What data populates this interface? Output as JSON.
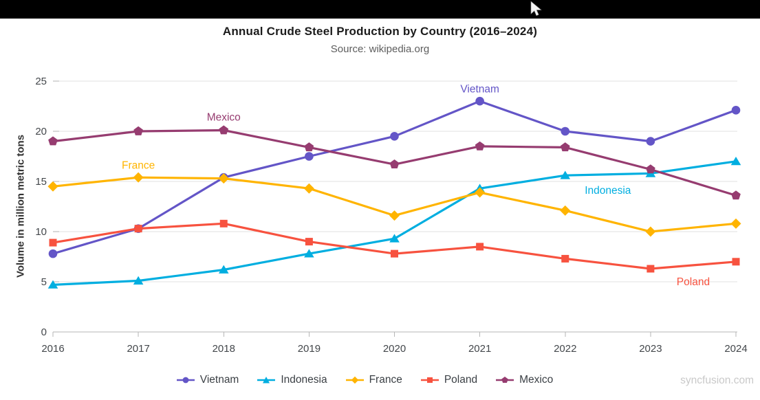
{
  "topbar": {
    "background": "#000000",
    "icons": {
      "mouse_cursor": "white-arrow-pointer"
    }
  },
  "chart_data": {
    "type": "line",
    "title": "Annual Crude Steel Production by Country (2016–2024)",
    "subtitle": "Source: wikipedia.org",
    "xlabel": "",
    "ylabel": "Volume in million metric tons",
    "x": [
      2016,
      2017,
      2018,
      2019,
      2020,
      2021,
      2022,
      2023,
      2024
    ],
    "ylim": [
      0,
      25
    ],
    "yticks": [
      0,
      5,
      10,
      15,
      20,
      25
    ],
    "grid": true,
    "legend_position": "bottom",
    "series": [
      {
        "name": "Vietnam",
        "color": "#6355C7",
        "marker": "circle",
        "values": [
          7.8,
          10.3,
          15.4,
          17.5,
          19.5,
          23.0,
          20.0,
          19.0,
          22.1
        ],
        "annotation": {
          "x": 2021,
          "y": 24.2
        }
      },
      {
        "name": "Indonesia",
        "color": "#00AEE0",
        "marker": "triangle",
        "values": [
          4.7,
          5.1,
          6.2,
          7.8,
          9.3,
          14.3,
          15.6,
          15.8,
          17.0
        ],
        "annotation": {
          "x": 2022.5,
          "y": 14.1
        }
      },
      {
        "name": "France",
        "color": "#FFB400",
        "marker": "diamond",
        "values": [
          14.5,
          15.4,
          15.3,
          14.3,
          11.6,
          13.9,
          12.1,
          10.0,
          10.8
        ],
        "annotation": {
          "x": 2017,
          "y": 16.6
        }
      },
      {
        "name": "Poland",
        "color": "#F7523F",
        "marker": "square",
        "values": [
          8.9,
          10.3,
          10.8,
          9.0,
          7.8,
          8.5,
          7.3,
          6.3,
          7.0
        ],
        "annotation": {
          "x": 2023.5,
          "y": 5.0
        }
      },
      {
        "name": "Mexico",
        "color": "#963C70",
        "marker": "pentagon",
        "values": [
          19.0,
          20.0,
          20.1,
          18.4,
          16.7,
          18.5,
          18.4,
          16.2,
          13.6
        ],
        "annotation": {
          "x": 2018,
          "y": 21.4
        }
      }
    ],
    "colors": {
      "grid": "#e0e0e0",
      "axis": "#b6b6b6",
      "axis_label": "#43474b"
    },
    "watermark": "syncfusion.com"
  }
}
